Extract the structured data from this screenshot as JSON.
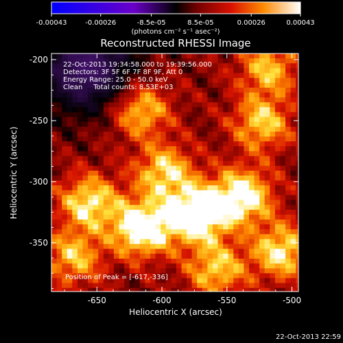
{
  "chart_data": {
    "type": "heatmap",
    "title": "Reconstructed RHESSI Image",
    "xlabel": "Heliocentric X (arcsec)",
    "ylabel": "Heliocentric Y (arcsec)",
    "xlim": [
      -685,
      -495
    ],
    "ylim": [
      -390,
      -195
    ],
    "x_ticks": [
      -650,
      -600,
      -550,
      -500
    ],
    "x_tick_labels": [
      "-650",
      "-600",
      "-550",
      "-500"
    ],
    "y_ticks": [
      -200,
      -250,
      -300,
      -350
    ],
    "y_tick_labels": [
      "-200",
      "-250",
      "-300",
      "-350"
    ],
    "colorbar": {
      "range": [
        -0.00043,
        0.00043
      ],
      "ticks": [
        -0.00043,
        -0.00026,
        -8.5e-05,
        8.5e-05,
        0.00026,
        0.00043
      ],
      "tick_labels": [
        "-0.00043",
        "-0.00026",
        "-8.5e-05",
        "8.5e-05",
        "0.00026",
        "0.00043"
      ],
      "units_label": "(photons cm⁻² s⁻¹ asec⁻²)"
    },
    "info_lines": [
      "22-Oct-2013 19:34:58.000 to 19:39:56.000",
      "Detectors: 3F 5F 6F 7F 8F 9F, Att 0",
      "Energy Range: 25.0 - 50.0 keV",
      "Clean     Total counts: 8.53E+03"
    ],
    "peak": {
      "label": "Position of Peak = [-617,-336]",
      "x": -617,
      "y": -336
    },
    "sources": [
      {
        "x": -575,
        "y": -325,
        "amp": 0.00043
      },
      {
        "x": -540,
        "y": -310,
        "amp": 0.00036
      },
      {
        "x": -617,
        "y": -336,
        "amp": 0.0004
      },
      {
        "x": -620,
        "y": -238,
        "amp": 0.00032
      },
      {
        "x": -658,
        "y": -315,
        "amp": 0.0003
      },
      {
        "x": -600,
        "y": -290,
        "amp": 0.00028
      },
      {
        "x": -525,
        "y": -250,
        "amp": 0.00026
      },
      {
        "x": -520,
        "y": -205,
        "amp": 0.00024
      },
      {
        "x": -510,
        "y": -355,
        "amp": 0.0003
      },
      {
        "x": -560,
        "y": -370,
        "amp": 0.00026
      },
      {
        "x": -670,
        "y": -360,
        "amp": 0.00024
      }
    ],
    "negative_region": {
      "x": -660,
      "y": -205,
      "amp": -0.0003
    }
  },
  "footer_timestamp": "22-Oct-2013 22:59"
}
